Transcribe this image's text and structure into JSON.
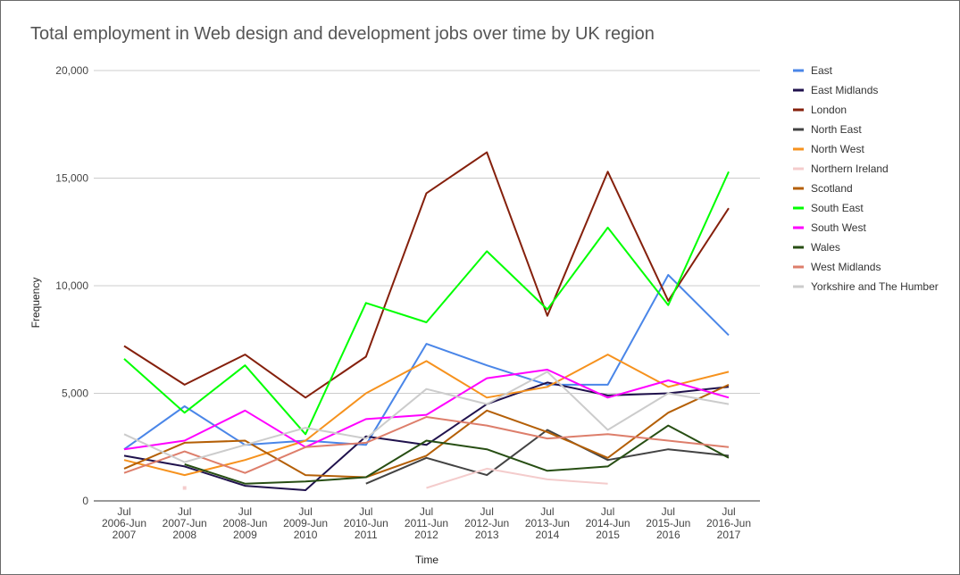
{
  "chart_data": {
    "type": "line",
    "title": "Total employment in Web design and development jobs over time by UK region",
    "xlabel": "Time",
    "ylabel": "Frequency",
    "ylim": [
      0,
      20000
    ],
    "yticks": [
      0,
      5000,
      10000,
      15000,
      20000
    ],
    "ytick_labels": [
      "0",
      "5,000",
      "10,000",
      "15,000",
      "20,000"
    ],
    "grid": true,
    "legend_position": "right",
    "categories": [
      [
        "Jul",
        "2006-Jun",
        "2007"
      ],
      [
        "Jul",
        "2007-Jun",
        "2008"
      ],
      [
        "Jul",
        "2008-Jun",
        "2009"
      ],
      [
        "Jul",
        "2009-Jun",
        "2010"
      ],
      [
        "Jul",
        "2010-Jun",
        "2011"
      ],
      [
        "Jul",
        "2011-Jun",
        "2012"
      ],
      [
        "Jul",
        "2012-Jun",
        "2013"
      ],
      [
        "Jul",
        "2013-Jun",
        "2014"
      ],
      [
        "Jul",
        "2014-Jun",
        "2015"
      ],
      [
        "Jul",
        "2015-Jun",
        "2016"
      ],
      [
        "Jul",
        "2016-Jun",
        "2017"
      ]
    ],
    "series": [
      {
        "name": "East",
        "color": "#4a86e8",
        "values": [
          2400,
          4400,
          2600,
          2800,
          2600,
          7300,
          6300,
          5400,
          5400,
          10500,
          7700
        ]
      },
      {
        "name": "East Midlands",
        "color": "#20124d",
        "values": [
          2100,
          1600,
          700,
          500,
          3000,
          2600,
          4500,
          5500,
          4900,
          5000,
          5300
        ]
      },
      {
        "name": "London",
        "color": "#85200c",
        "values": [
          7200,
          5400,
          6800,
          4800,
          6700,
          14300,
          16200,
          8600,
          15300,
          9300,
          13600
        ]
      },
      {
        "name": "North East",
        "color": "#434343",
        "values": [
          null,
          null,
          null,
          null,
          800,
          2000,
          1200,
          3300,
          1900,
          2400,
          2100
        ]
      },
      {
        "name": "North West",
        "color": "#f6921e",
        "values": [
          1900,
          1200,
          1900,
          2800,
          5000,
          6500,
          4800,
          5300,
          6800,
          5300,
          6000
        ]
      },
      {
        "name": "Northern Ireland",
        "color": "#f4cccc",
        "values": [
          null,
          600,
          null,
          null,
          null,
          600,
          1500,
          1000,
          800,
          null,
          null
        ]
      },
      {
        "name": "Scotland",
        "color": "#b45f06",
        "values": [
          1500,
          2700,
          2800,
          1200,
          1100,
          2100,
          4200,
          3200,
          2000,
          4100,
          5400
        ]
      },
      {
        "name": "South East",
        "color": "#00ff00",
        "values": [
          6600,
          4100,
          6300,
          3100,
          9200,
          8300,
          11600,
          8900,
          12700,
          9100,
          15300
        ]
      },
      {
        "name": "South West",
        "color": "#ff00ff",
        "values": [
          2400,
          2800,
          4200,
          2500,
          3800,
          4000,
          5700,
          6100,
          4800,
          5600,
          4800
        ]
      },
      {
        "name": "Wales",
        "color": "#274e13",
        "values": [
          null,
          1700,
          800,
          900,
          1100,
          2800,
          2400,
          1400,
          1600,
          3500,
          2000
        ]
      },
      {
        "name": "West Midlands",
        "color": "#dd7e6b",
        "values": [
          1300,
          2300,
          1300,
          2500,
          2700,
          3900,
          3500,
          2900,
          3100,
          2800,
          2500
        ]
      },
      {
        "name": "Yorkshire and The Humber",
        "color": "#cccccc",
        "values": [
          3100,
          1800,
          2600,
          3400,
          2900,
          5200,
          4500,
          6000,
          3300,
          5000,
          4500
        ]
      }
    ]
  }
}
